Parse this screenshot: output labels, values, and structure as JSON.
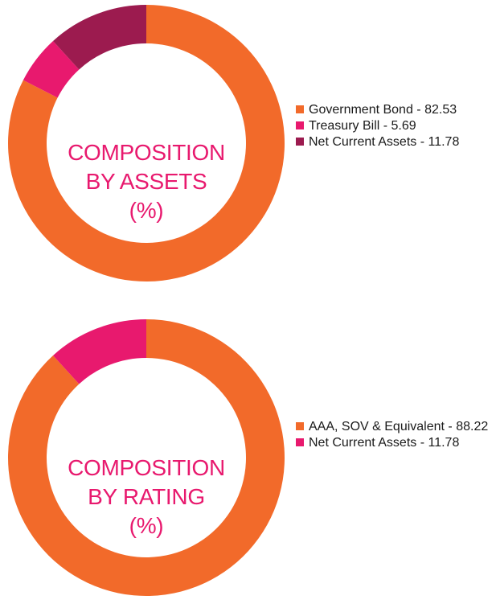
{
  "colors": {
    "orange": "#f26a2a",
    "pink": "#e8196e",
    "maroon": "#9c1b4f",
    "label": "#e8196e"
  },
  "chart_data": [
    {
      "type": "pie",
      "donut": true,
      "center_label": [
        "COMPOSITION",
        "BY ASSETS",
        "(%)"
      ],
      "slices": [
        {
          "label": "Government Bond",
          "value": 82.53,
          "color": "#f26a2a",
          "legend_text": "Government Bond - 82.53"
        },
        {
          "label": "Treasury Bill",
          "value": 5.69,
          "color": "#e8196e",
          "legend_text": "Treasury Bill - 5.69"
        },
        {
          "label": "Net Current Assets",
          "value": 11.78,
          "color": "#9c1b4f",
          "legend_text": "Net Current Assets - 11.78"
        }
      ],
      "legend_position": "right"
    },
    {
      "type": "pie",
      "donut": true,
      "center_label": [
        "COMPOSITION",
        "BY RATING",
        "(%)"
      ],
      "slices": [
        {
          "label": "AAA, SOV & Equivalent",
          "value": 88.22,
          "color": "#f26a2a",
          "legend_text": "AAA, SOV & Equivalent - 88.22"
        },
        {
          "label": "Net Current Assets",
          "value": 11.78,
          "color": "#e8196e",
          "legend_text": "Net Current Assets - 11.78"
        }
      ],
      "legend_position": "right"
    }
  ]
}
